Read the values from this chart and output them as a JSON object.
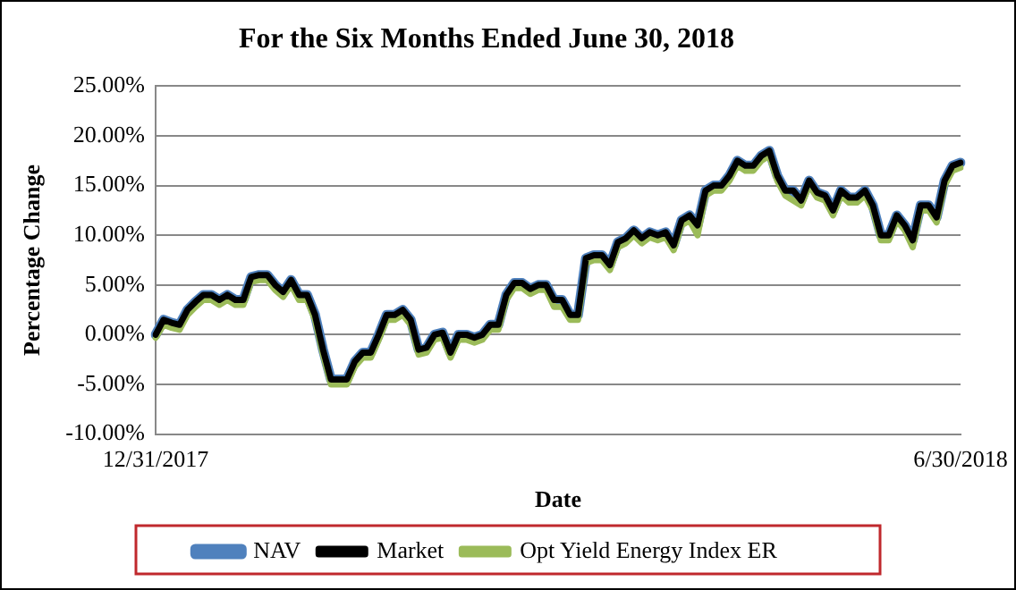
{
  "chart_data": {
    "type": "line",
    "title": "For the Six Months Ended June 30, 2018",
    "xlabel": "Date",
    "ylabel": "Percentage Change",
    "categories": [
      "12/31/2017",
      null,
      null,
      null,
      null,
      null,
      null,
      null,
      null,
      null,
      null,
      null,
      null,
      null,
      null,
      null,
      null,
      null,
      null,
      null,
      null,
      null,
      null,
      null,
      null,
      null,
      null,
      null,
      null,
      null,
      null,
      null,
      null,
      null,
      null,
      null,
      null,
      null,
      null,
      null,
      null,
      null,
      null,
      null,
      null,
      null,
      null,
      null,
      null,
      null,
      null,
      null,
      null,
      null,
      null,
      null,
      null,
      null,
      null,
      null,
      null,
      null,
      null,
      null,
      null,
      null,
      null,
      null,
      null,
      null,
      null,
      null,
      null,
      null,
      null,
      null,
      null,
      null,
      null,
      null,
      null,
      null,
      null,
      null,
      null,
      null,
      null,
      null,
      null,
      null,
      null,
      null,
      null,
      null,
      null,
      null,
      null,
      null,
      null,
      null,
      null,
      "6/30/2018"
    ],
    "series": [
      {
        "name": "NAV",
        "color": "#4f81bd",
        "values": [
          0,
          1.5,
          1.2,
          1.0,
          2.5,
          3.3,
          4.0,
          4.0,
          3.5,
          4.0,
          3.5,
          3.5,
          5.8,
          6.0,
          6.0,
          5.0,
          4.3,
          5.5,
          4.0,
          4.0,
          2.0,
          -1.5,
          -4.5,
          -4.5,
          -4.5,
          -2.7,
          -1.8,
          -1.8,
          0,
          2.0,
          2.0,
          2.5,
          1.5,
          -1.5,
          -1.3,
          0,
          0.2,
          -1.8,
          0,
          0,
          -0.3,
          0,
          1.0,
          1.0,
          4.0,
          5.2,
          5.2,
          4.6,
          5.0,
          5.0,
          3.5,
          3.5,
          2.0,
          2.0,
          7.7,
          8.0,
          8.0,
          7.0,
          9.3,
          9.7,
          10.5,
          9.7,
          10.3,
          10.0,
          10.3,
          9.0,
          11.5,
          12.0,
          11.0,
          14.5,
          15.0,
          15.0,
          16.0,
          17.5,
          17.0,
          17.0,
          18.0,
          18.5,
          16.0,
          14.5,
          14.5,
          13.5,
          15.5,
          14.3,
          14.0,
          12.5,
          14.5,
          13.8,
          13.8,
          14.5,
          13.0,
          10.0,
          10.0,
          12.0,
          11.0,
          9.5,
          13.0,
          13.0,
          11.8,
          15.5,
          17.0,
          17.3
        ]
      },
      {
        "name": "Market",
        "color": "#000000",
        "values": [
          0,
          1.5,
          1.2,
          1.0,
          2.5,
          3.3,
          4.0,
          4.0,
          3.5,
          4.0,
          3.5,
          3.5,
          5.8,
          6.0,
          6.0,
          5.0,
          4.3,
          5.5,
          4.0,
          4.0,
          2.0,
          -1.5,
          -4.5,
          -4.5,
          -4.5,
          -2.7,
          -1.8,
          -1.8,
          0,
          2.0,
          2.0,
          2.5,
          1.5,
          -1.5,
          -1.3,
          0,
          0.2,
          -1.8,
          0,
          0,
          -0.3,
          0,
          1.0,
          1.0,
          4.0,
          5.2,
          5.2,
          4.6,
          5.0,
          5.0,
          3.5,
          3.5,
          2.0,
          2.0,
          7.7,
          8.0,
          8.0,
          7.0,
          9.3,
          9.7,
          10.5,
          9.7,
          10.3,
          10.0,
          10.3,
          9.0,
          11.5,
          12.0,
          11.0,
          14.5,
          15.0,
          15.0,
          16.0,
          17.5,
          17.0,
          17.0,
          18.0,
          18.5,
          16.0,
          14.5,
          14.5,
          13.5,
          15.5,
          14.3,
          14.0,
          12.5,
          14.5,
          13.8,
          13.8,
          14.5,
          13.0,
          10.0,
          10.0,
          12.0,
          11.0,
          9.5,
          13.0,
          13.0,
          11.8,
          15.5,
          17.0,
          17.3
        ]
      },
      {
        "name": "Opt Yield Energy Index ER",
        "color": "#9bbb59",
        "values": [
          -0.3,
          1.0,
          0.7,
          0.5,
          2.0,
          2.8,
          3.5,
          3.5,
          3.0,
          3.5,
          3.0,
          3.0,
          5.3,
          5.5,
          5.5,
          4.5,
          3.8,
          5.0,
          3.5,
          3.5,
          1.5,
          -2.0,
          -5.0,
          -5.0,
          -5.0,
          -3.2,
          -2.3,
          -2.3,
          -0.5,
          1.5,
          1.5,
          2.0,
          1.0,
          -2.0,
          -1.8,
          -0.5,
          -0.3,
          -2.3,
          -0.5,
          -0.5,
          -0.8,
          -0.5,
          0.5,
          0.5,
          3.5,
          4.7,
          4.7,
          4.1,
          4.5,
          4.5,
          2.8,
          2.8,
          1.5,
          1.5,
          7.2,
          7.5,
          7.5,
          6.5,
          8.8,
          9.2,
          10.0,
          9.2,
          9.8,
          9.5,
          9.8,
          8.5,
          11.0,
          11.5,
          10.0,
          14.0,
          14.5,
          14.5,
          15.5,
          17.0,
          16.5,
          16.5,
          17.5,
          18.0,
          15.5,
          14.0,
          13.5,
          13.0,
          15.0,
          13.8,
          13.5,
          12.0,
          14.0,
          13.3,
          13.3,
          14.0,
          12.5,
          9.5,
          9.5,
          11.5,
          10.5,
          8.8,
          12.5,
          12.5,
          11.3,
          15.0,
          16.5,
          16.8
        ]
      }
    ],
    "ylim": [
      -10,
      25
    ],
    "yticks": [
      {
        "value": -10,
        "label": "-10.00%"
      },
      {
        "value": -5,
        "label": "-5.00%"
      },
      {
        "value": 0,
        "label": "0.00%"
      },
      {
        "value": 5,
        "label": "5.00%"
      },
      {
        "value": 10,
        "label": "10.00%"
      },
      {
        "value": 15,
        "label": "15.00%"
      },
      {
        "value": 20,
        "label": "20.00%"
      },
      {
        "value": 25,
        "label": "25.00%"
      }
    ],
    "grid": "y",
    "legend": "bottom",
    "marker": "none",
    "line_style": "solid"
  }
}
